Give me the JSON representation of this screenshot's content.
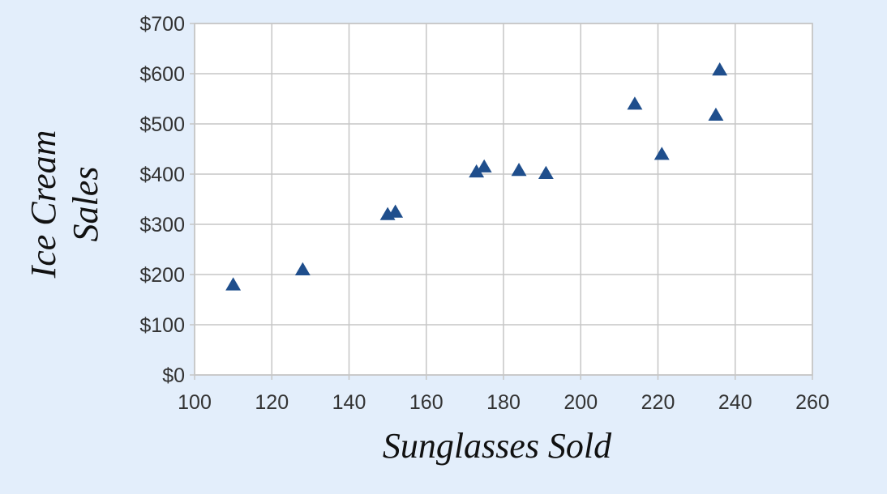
{
  "chart_data": {
    "type": "scatter",
    "title": "",
    "xlabel": "Sunglasses Sold",
    "ylabel_lines": [
      "Ice Cream",
      "Sales"
    ],
    "xlim": [
      100,
      260
    ],
    "ylim": [
      0,
      700
    ],
    "x_ticks": [
      100,
      120,
      140,
      160,
      180,
      200,
      220,
      240,
      260
    ],
    "y_ticks": [
      0,
      100,
      200,
      300,
      400,
      500,
      600,
      700
    ],
    "x_tick_labels": [
      "100",
      "120",
      "140",
      "160",
      "180",
      "200",
      "220",
      "240",
      "260"
    ],
    "y_tick_labels": [
      "$0",
      "$100",
      "$200",
      "$300",
      "$400",
      "$500",
      "$600",
      "$700"
    ],
    "grid": true,
    "legend": false,
    "marker": "triangle",
    "marker_color": "#1f4e8c",
    "points": [
      {
        "x": 110,
        "y": 180
      },
      {
        "x": 128,
        "y": 210
      },
      {
        "x": 150,
        "y": 320
      },
      {
        "x": 152,
        "y": 325
      },
      {
        "x": 173,
        "y": 405
      },
      {
        "x": 175,
        "y": 415
      },
      {
        "x": 184,
        "y": 408
      },
      {
        "x": 191,
        "y": 402
      },
      {
        "x": 214,
        "y": 540
      },
      {
        "x": 221,
        "y": 440
      },
      {
        "x": 235,
        "y": 518
      },
      {
        "x": 236,
        "y": 608
      }
    ]
  }
}
